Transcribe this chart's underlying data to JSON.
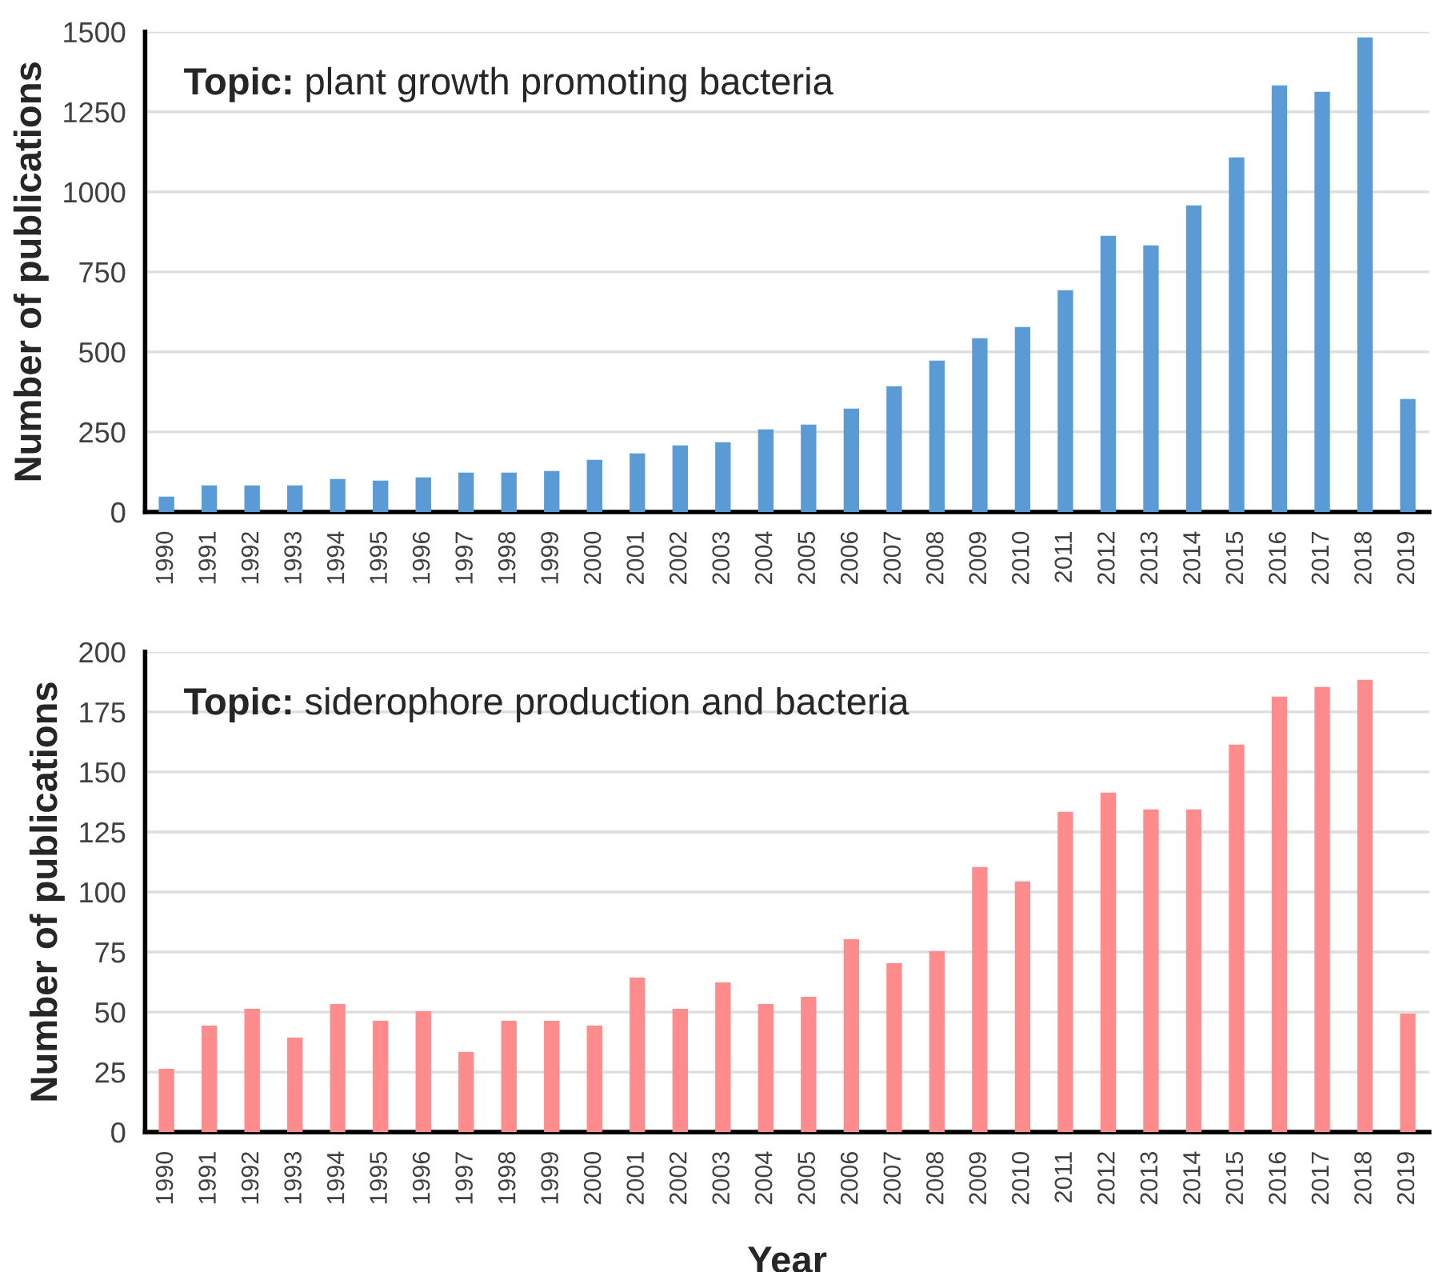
{
  "chart_data": [
    {
      "type": "bar",
      "title": "Topic: plant growth promoting bacteria",
      "ylabel": "Number of publications",
      "categories": [
        "1990",
        "1991",
        "1992",
        "1993",
        "1994",
        "1995",
        "1996",
        "1997",
        "1998",
        "1999",
        "2000",
        "2001",
        "2002",
        "2003",
        "2004",
        "2005",
        "2006",
        "2007",
        "2008",
        "2009",
        "2010",
        "2011",
        "2012",
        "2013",
        "2014",
        "2015",
        "2016",
        "2017",
        "2018",
        "2019"
      ],
      "series": [
        {
          "color": "#5b9bd5",
          "values": [
            45,
            80,
            80,
            80,
            100,
            95,
            105,
            120,
            120,
            125,
            160,
            180,
            205,
            215,
            255,
            270,
            320,
            390,
            470,
            540,
            575,
            690,
            860,
            830,
            955,
            1105,
            1330,
            1310,
            1480,
            350
          ]
        }
      ],
      "ylim": [
        0,
        1500
      ],
      "yticks": [
        0,
        250,
        500,
        750,
        1000,
        1250,
        1500
      ],
      "grid": "y",
      "legend": false
    },
    {
      "type": "bar",
      "title": "Topic: siderophore production and bacteria",
      "ylabel": "Number of publications",
      "xlabel": "Year",
      "categories": [
        "1990",
        "1991",
        "1992",
        "1993",
        "1994",
        "1995",
        "1996",
        "1997",
        "1998",
        "1999",
        "2000",
        "2001",
        "2002",
        "2003",
        "2004",
        "2005",
        "2006",
        "2007",
        "2008",
        "2009",
        "2010",
        "2011",
        "2012",
        "2013",
        "2014",
        "2015",
        "2016",
        "2017",
        "2018",
        "2019"
      ],
      "series": [
        {
          "color": "#ff8c8c",
          "values": [
            26,
            44,
            51,
            39,
            53,
            46,
            50,
            33,
            46,
            46,
            44,
            64,
            51,
            62,
            53,
            56,
            80,
            70,
            75,
            110,
            104,
            133,
            141,
            134,
            134,
            161,
            181,
            185,
            188,
            49
          ]
        }
      ],
      "ylim": [
        0,
        200
      ],
      "yticks": [
        0,
        25,
        50,
        75,
        100,
        125,
        150,
        175,
        200
      ],
      "grid": "y",
      "legend": false
    }
  ]
}
